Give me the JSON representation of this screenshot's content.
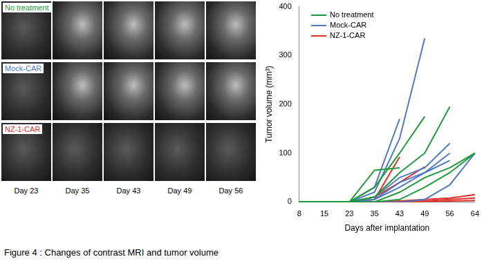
{
  "images": {
    "rows": [
      {
        "label": "No treatment",
        "color": "#1f9a3a"
      },
      {
        "label": "Mock-CAR",
        "color": "#4f79c4"
      },
      {
        "label": "NZ-1-CAR",
        "color": "#e0302a"
      }
    ],
    "days": [
      "Day 23",
      "Day 35",
      "Day 43",
      "Day 49",
      "Day 56"
    ]
  },
  "chart_data": {
    "type": "line",
    "x_label": "Days after implantation",
    "y_label": "Tumor volume (mm³)",
    "categories": [
      8,
      15,
      23,
      35,
      43,
      49,
      56,
      64
    ],
    "ylim": [
      0,
      400
    ],
    "yticks": [
      0,
      100,
      200,
      300,
      400
    ],
    "grid": false,
    "legend": "upper left",
    "series": [
      {
        "name": "No treatment",
        "color": "#1f9a3a",
        "lines": [
          [
            0,
            0,
            0,
            65,
            70,
            null,
            null,
            null
          ],
          [
            0,
            0,
            0,
            30,
            100,
            175,
            null,
            null
          ],
          [
            0,
            0,
            0,
            10,
            60,
            100,
            195,
            null
          ],
          [
            0,
            0,
            0,
            0,
            20,
            50,
            70,
            100
          ],
          [
            0,
            0,
            0,
            0,
            5,
            30,
            60,
            100
          ]
        ]
      },
      {
        "name": "Mock-CAR",
        "color": "#4f79c4",
        "lines": [
          [
            0,
            0,
            0,
            20,
            130,
            335,
            null,
            null
          ],
          [
            0,
            0,
            0,
            30,
            170,
            null,
            null,
            null
          ],
          [
            0,
            0,
            0,
            10,
            50,
            70,
            120,
            null
          ],
          [
            0,
            0,
            0,
            5,
            40,
            60,
            100,
            null
          ],
          [
            0,
            0,
            0,
            5,
            30,
            60,
            85,
            null
          ],
          [
            0,
            0,
            0,
            0,
            0,
            5,
            35,
            100
          ]
        ]
      },
      {
        "name": "NZ-1-CAR",
        "color": "#e0302a",
        "lines": [
          [
            0,
            0,
            0,
            5,
            92,
            null,
            null,
            null
          ],
          [
            0,
            0,
            0,
            10,
            40,
            72,
            null,
            null
          ],
          [
            0,
            0,
            0,
            0,
            2,
            5,
            8,
            15
          ],
          [
            0,
            0,
            0,
            0,
            0,
            2,
            5,
            8
          ],
          [
            0,
            0,
            0,
            0,
            0,
            0,
            2,
            3
          ]
        ]
      }
    ]
  },
  "caption": "Figure 4 : Changes of contrast MRI and tumor volume"
}
